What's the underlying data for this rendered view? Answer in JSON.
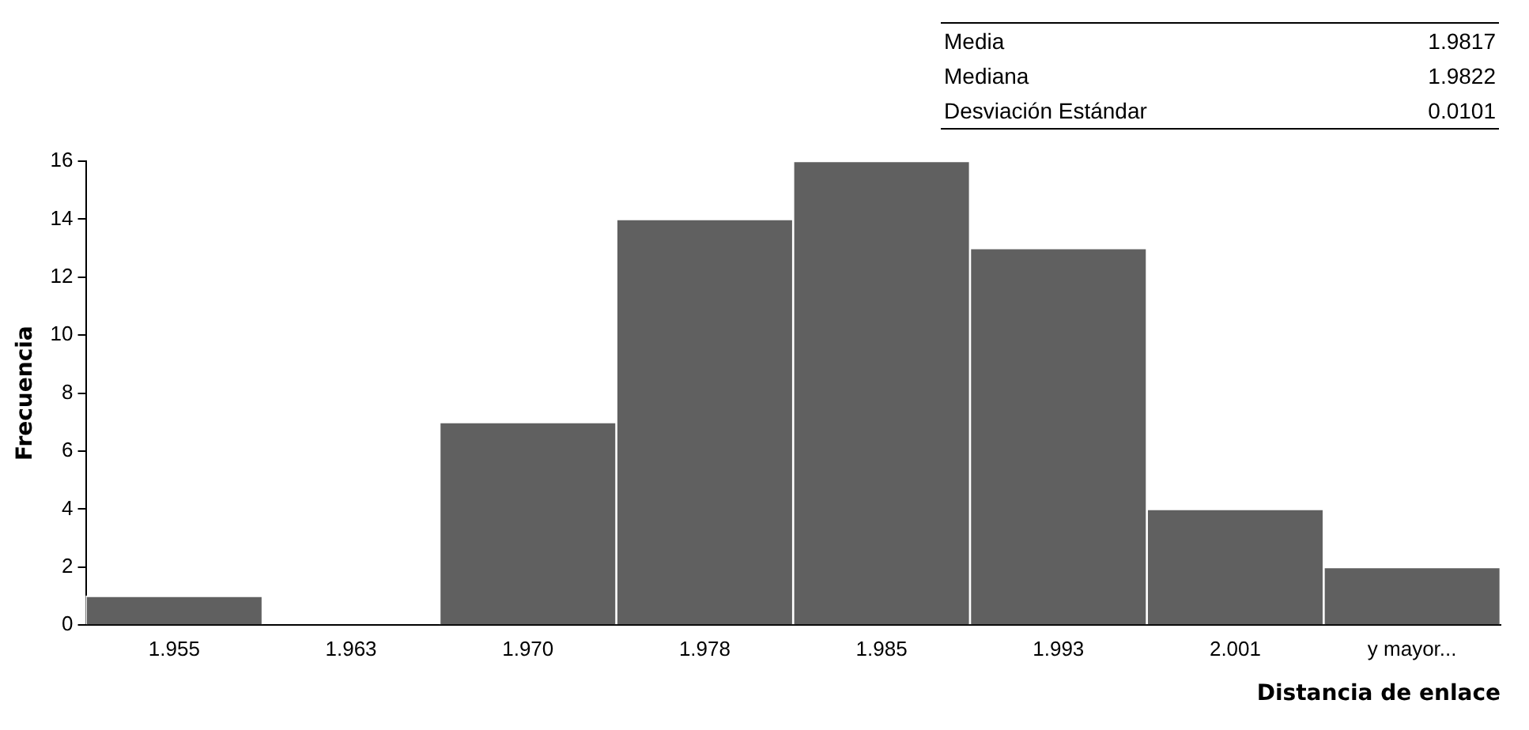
{
  "chart_data": {
    "type": "bar",
    "xlabel": "Distancia de enlace",
    "ylabel": "Frecuencia",
    "categories": [
      "1.955",
      "1.963",
      "1.970",
      "1.978",
      "1.985",
      "1.993",
      "2.001",
      "y mayor..."
    ],
    "values": [
      1,
      0,
      7,
      14,
      16,
      13,
      4,
      2
    ],
    "color": "#606060",
    "ylim": [
      0,
      16
    ],
    "yticks": [
      0,
      2,
      4,
      6,
      8,
      10,
      12,
      14,
      16
    ],
    "grid": false,
    "legend": false,
    "annotations": [
      "Media",
      "1.9817",
      "Mediana",
      "1.9822",
      "Desviación Estándar",
      "0.0101"
    ]
  }
}
